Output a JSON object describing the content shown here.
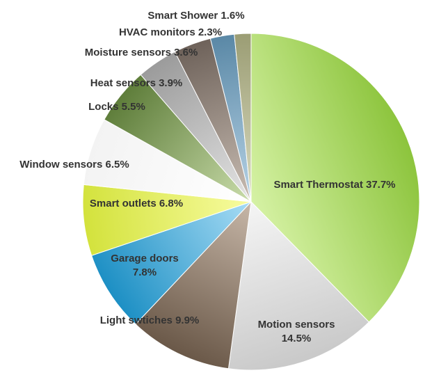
{
  "chart_data": {
    "type": "pie",
    "title": "",
    "start_angle_deg": 0,
    "direction": "clockwise",
    "legend": "none",
    "slices": [
      {
        "label": "Smart Thermostat",
        "value": 37.7,
        "display": "Smart Thermostat 37.7%",
        "color_light": "#d6f2a5",
        "color_dark": "#8cc43c"
      },
      {
        "label": "Motion sensors",
        "value": 14.5,
        "display": "Motion  sensors\n14.5%",
        "color_light": "#f5f5f5",
        "color_dark": "#c9c9c9"
      },
      {
        "label": "Light swtiches",
        "value": 9.9,
        "display": "Light  swtiches 9.9%",
        "color_light": "#c7b7a8",
        "color_dark": "#6a5848"
      },
      {
        "label": "Garage doors",
        "value": 7.8,
        "display": "Garage doors\n7.8%",
        "color_light": "#a7dcf5",
        "color_dark": "#1c8fc4"
      },
      {
        "label": "Smart outlets",
        "value": 6.8,
        "display": "Smart outlets  6.8%",
        "color_light": "#f8fca0",
        "color_dark": "#d3e23c"
      },
      {
        "label": "Window sensors",
        "value": 6.5,
        "display": "Window sensors 6.5%",
        "color_light": "#ffffff",
        "color_dark": "#f3f3f3"
      },
      {
        "label": "Locks",
        "value": 5.5,
        "display": "Locks 5.5%",
        "color_light": "#c9dcaa",
        "color_dark": "#5e7d3a"
      },
      {
        "label": "Heat sensors",
        "value": 3.9,
        "display": "Heat sensors 3.9%",
        "color_light": "#e4e4e4",
        "color_dark": "#9b9b9b"
      },
      {
        "label": "Moisture sensors",
        "value": 3.6,
        "display": "Moisture sensors 3.6%",
        "color_light": "#c9bdb3",
        "color_dark": "#6e625a"
      },
      {
        "label": "HVAC monitors",
        "value": 2.3,
        "display": "HVAC  monitors 2.3%",
        "color_light": "#b7d3e6",
        "color_dark": "#5a88a6"
      },
      {
        "label": "Smart Shower",
        "value": 1.6,
        "display": "Smart Shower 1.6%",
        "color_light": "#dadbc0",
        "color_dark": "#9b9d74"
      }
    ]
  }
}
